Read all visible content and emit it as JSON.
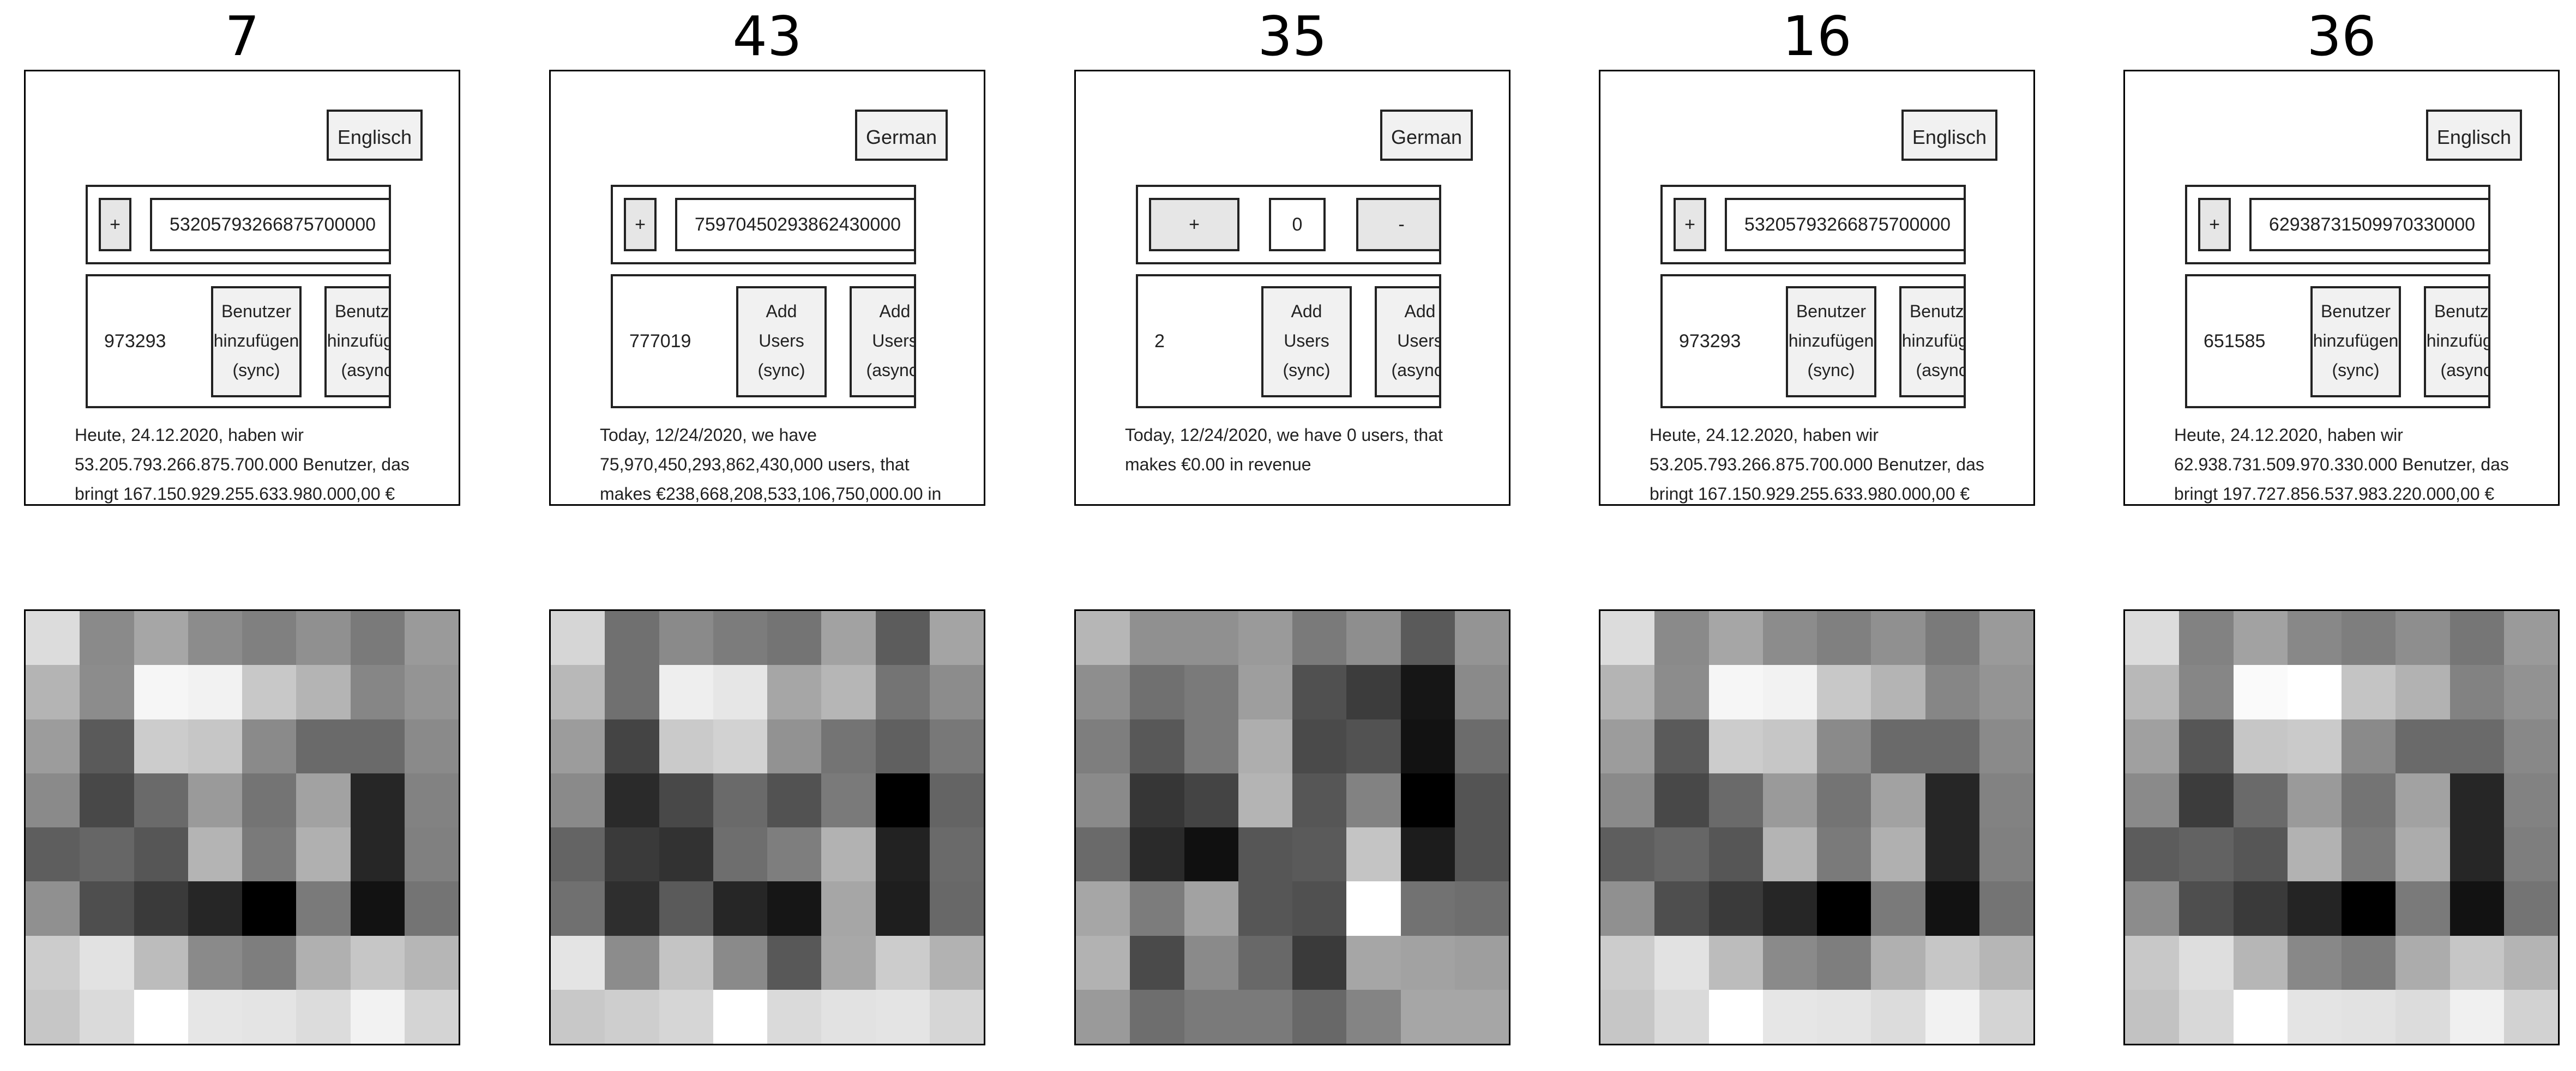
{
  "panels": [
    {
      "label": "7",
      "language_button": "Englisch",
      "counter": {
        "variant": "narrow",
        "plus": "+",
        "value": "53205793266875700000",
        "minus": ""
      },
      "users_count": "973293",
      "add_sync": "Benutzer\nhinzufügen\n(sync)",
      "add_async": "Benutzer\nhinzufügen\n(async)",
      "status": "Heute, 24.12.2020, haben wir 53.205.793.266.875.700.000 Benutzer, das bringt 167.150.929.255.633.980.000,00 €"
    },
    {
      "label": "43",
      "language_button": "German",
      "counter": {
        "variant": "narrow",
        "plus": "+",
        "value": "75970450293862430000",
        "minus": ""
      },
      "users_count": "777019",
      "add_sync": "Add\nUsers\n(sync)",
      "add_async": "Add\nUsers\n(async)",
      "status": "Today, 12/24/2020, we have 75,970,450,293,862,430,000 users, that makes €238,668,208,533,106,750,000.00 in"
    },
    {
      "label": "35",
      "language_button": "German",
      "counter": {
        "variant": "wide",
        "plus": "+",
        "value": "0",
        "minus": "-"
      },
      "users_count": "2",
      "add_sync": "Add\nUsers\n(sync)",
      "add_async": "Add\nUsers\n(async)",
      "status": "Today, 12/24/2020, we have 0 users, that makes €0.00 in revenue"
    },
    {
      "label": "16",
      "language_button": "Englisch",
      "counter": {
        "variant": "narrow",
        "plus": "+",
        "value": "53205793266875700000",
        "minus": ""
      },
      "users_count": "973293",
      "add_sync": "Benutzer\nhinzufügen\n(sync)",
      "add_async": "Benutzer\nhinzufügen\n(async)",
      "status": "Heute, 24.12.2020, haben wir 53.205.793.266.875.700.000 Benutzer, das bringt 167.150.929.255.633.980.000,00 €"
    },
    {
      "label": "36",
      "language_button": "Englisch",
      "counter": {
        "variant": "narrow",
        "plus": "+",
        "value": "62938731509970330000",
        "minus": ""
      },
      "users_count": "651585",
      "add_sync": "Benutzer\nhinzufügen\n(sync)",
      "add_async": "Benutzer\nhinzufügen\n(async)",
      "status": "Heute, 24.12.2020, haben wir 62.938.731.509.970.330.000 Benutzer, das bringt 197.727.856.537.983.220.000,00 €"
    }
  ],
  "grids": [
    [
      [
        "#dcdcdc",
        "#8a8a8a",
        "#a6a6a6",
        "#8c8c8c",
        "#808080",
        "#909090",
        "#7a7a7a",
        "#9a9a9a"
      ],
      [
        "#b4b4b4",
        "#8c8c8c",
        "#f6f6f6",
        "#f2f2f2",
        "#c8c8c8",
        "#b4b4b4",
        "#868686",
        "#949494"
      ],
      [
        "#9c9c9c",
        "#5a5a5a",
        "#cccccc",
        "#c6c6c6",
        "#8a8a8a",
        "#6a6a6a",
        "#6a6a6a",
        "#8a8a8a"
      ],
      [
        "#8a8a8a",
        "#484848",
        "#6a6a6a",
        "#9a9a9a",
        "#747474",
        "#a2a2a2",
        "#262626",
        "#828282"
      ],
      [
        "#5e5e5e",
        "#666666",
        "#565656",
        "#b4b4b4",
        "#7a7a7a",
        "#b0b0b0",
        "#262626",
        "#808080"
      ],
      [
        "#909090",
        "#4e4e4e",
        "#3a3a3a",
        "#262626",
        "#000000",
        "#7a7a7a",
        "#121212",
        "#747474"
      ],
      [
        "#cccccc",
        "#e2e2e2",
        "#bcbcbc",
        "#8a8a8a",
        "#7e7e7e",
        "#b0b0b0",
        "#c6c6c6",
        "#b6b6b6"
      ],
      [
        "#c6c6c6",
        "#dadada",
        "#ffffff",
        "#e6e6e6",
        "#e4e4e4",
        "#dcdcdc",
        "#f2f2f2",
        "#d4d4d4"
      ]
    ],
    [
      [
        "#d6d6d6",
        "#707070",
        "#8a8a8a",
        "#7c7c7c",
        "#747474",
        "#a2a2a2",
        "#5c5c5c",
        "#a4a4a4"
      ],
      [
        "#b8b8b8",
        "#707070",
        "#eeeeee",
        "#e6e6e6",
        "#a6a6a6",
        "#b6b6b6",
        "#747474",
        "#8c8c8c"
      ],
      [
        "#9c9c9c",
        "#444444",
        "#cacaca",
        "#d2d2d2",
        "#929292",
        "#747474",
        "#606060",
        "#787878"
      ],
      [
        "#8a8a8a",
        "#2a2a2a",
        "#484848",
        "#6a6a6a",
        "#525252",
        "#7a7a7a",
        "#000000",
        "#646464"
      ],
      [
        "#646464",
        "#3a3a3a",
        "#323232",
        "#6e6e6e",
        "#7e7e7e",
        "#b2b2b2",
        "#222222",
        "#6a6a6a"
      ],
      [
        "#707070",
        "#2e2e2e",
        "#5a5a5a",
        "#262626",
        "#161616",
        "#a6a6a6",
        "#1e1e1e",
        "#686868"
      ],
      [
        "#e4e4e4",
        "#8c8c8c",
        "#c4c4c4",
        "#8a8a8a",
        "#585858",
        "#a8a8a8",
        "#cccccc",
        "#b2b2b2"
      ],
      [
        "#c8c8c8",
        "#cecece",
        "#d6d6d6",
        "#ffffff",
        "#dadada",
        "#e2e2e2",
        "#e4e4e4",
        "#d6d6d6"
      ]
    ],
    [
      [
        "#b6b6b6",
        "#909090",
        "#909090",
        "#9a9a9a",
        "#7a7a7a",
        "#8e8e8e",
        "#5a5a5a",
        "#949494"
      ],
      [
        "#8e8e8e",
        "#707070",
        "#7a7a7a",
        "#9e9e9e",
        "#505050",
        "#3c3c3c",
        "#161616",
        "#8a8a8a"
      ],
      [
        "#7e7e7e",
        "#585858",
        "#7a7a7a",
        "#aeaeae",
        "#4a4a4a",
        "#525252",
        "#121212",
        "#6c6c6c"
      ],
      [
        "#8a8a8a",
        "#363636",
        "#444444",
        "#b4b4b4",
        "#565656",
        "#828282",
        "#000000",
        "#545454"
      ],
      [
        "#6a6a6a",
        "#2a2a2a",
        "#101010",
        "#565656",
        "#5a5a5a",
        "#c4c4c4",
        "#1c1c1c",
        "#545454"
      ],
      [
        "#a6a6a6",
        "#7c7c7c",
        "#a2a2a2",
        "#565656",
        "#505050",
        "#ffffff",
        "#727272",
        "#6e6e6e"
      ],
      [
        "#b2b2b2",
        "#4a4a4a",
        "#8a8a8a",
        "#686868",
        "#3a3a3a",
        "#a6a6a6",
        "#a2a2a2",
        "#9e9e9e"
      ],
      [
        "#9a9a9a",
        "#6e6e6e",
        "#7a7a7a",
        "#7a7a7a",
        "#686868",
        "#848484",
        "#a6a6a6",
        "#a6a6a6"
      ]
    ],
    [
      [
        "#dcdcdc",
        "#8a8a8a",
        "#a6a6a6",
        "#8c8c8c",
        "#808080",
        "#909090",
        "#7a7a7a",
        "#9a9a9a"
      ],
      [
        "#b4b4b4",
        "#8c8c8c",
        "#f6f6f6",
        "#f2f2f2",
        "#c8c8c8",
        "#b4b4b4",
        "#868686",
        "#949494"
      ],
      [
        "#9c9c9c",
        "#5a5a5a",
        "#cccccc",
        "#c6c6c6",
        "#8a8a8a",
        "#6a6a6a",
        "#6a6a6a",
        "#8a8a8a"
      ],
      [
        "#8a8a8a",
        "#484848",
        "#6a6a6a",
        "#9a9a9a",
        "#747474",
        "#a2a2a2",
        "#262626",
        "#828282"
      ],
      [
        "#5e5e5e",
        "#666666",
        "#565656",
        "#b4b4b4",
        "#7a7a7a",
        "#b0b0b0",
        "#262626",
        "#808080"
      ],
      [
        "#909090",
        "#4e4e4e",
        "#3a3a3a",
        "#262626",
        "#000000",
        "#7a7a7a",
        "#121212",
        "#747474"
      ],
      [
        "#cccccc",
        "#e2e2e2",
        "#bcbcbc",
        "#8a8a8a",
        "#7e7e7e",
        "#b0b0b0",
        "#c6c6c6",
        "#b6b6b6"
      ],
      [
        "#c6c6c6",
        "#dadada",
        "#ffffff",
        "#e6e6e6",
        "#e4e4e4",
        "#dcdcdc",
        "#f2f2f2",
        "#d4d4d4"
      ]
    ],
    [
      [
        "#dcdcdc",
        "#828282",
        "#a2a2a2",
        "#888888",
        "#7e7e7e",
        "#8e8e8e",
        "#767676",
        "#9a9a9a"
      ],
      [
        "#b8b8b8",
        "#868686",
        "#fafafa",
        "#ffffff",
        "#c4c4c4",
        "#b2b2b2",
        "#828282",
        "#929292"
      ],
      [
        "#a0a0a0",
        "#565656",
        "#c6c6c6",
        "#cacaca",
        "#8a8a8a",
        "#6a6a6a",
        "#6a6a6a",
        "#888888"
      ],
      [
        "#8a8a8a",
        "#3c3c3c",
        "#6a6a6a",
        "#9a9a9a",
        "#747474",
        "#a2a2a2",
        "#262626",
        "#828282"
      ],
      [
        "#5c5c5c",
        "#626262",
        "#565656",
        "#b2b2b2",
        "#7a7a7a",
        "#acacac",
        "#262626",
        "#7e7e7e"
      ],
      [
        "#8c8c8c",
        "#4e4e4e",
        "#3a3a3a",
        "#242424",
        "#000000",
        "#7a7a7a",
        "#121212",
        "#747474"
      ],
      [
        "#c8c8c8",
        "#dedede",
        "#b6b6b6",
        "#888888",
        "#7c7c7c",
        "#acacac",
        "#c6c6c6",
        "#b4b4b4"
      ],
      [
        "#c2c2c2",
        "#d8d8d8",
        "#ffffff",
        "#e4e4e4",
        "#e2e2e2",
        "#dcdcdc",
        "#f0f0f0",
        "#d2d2d2"
      ]
    ]
  ]
}
